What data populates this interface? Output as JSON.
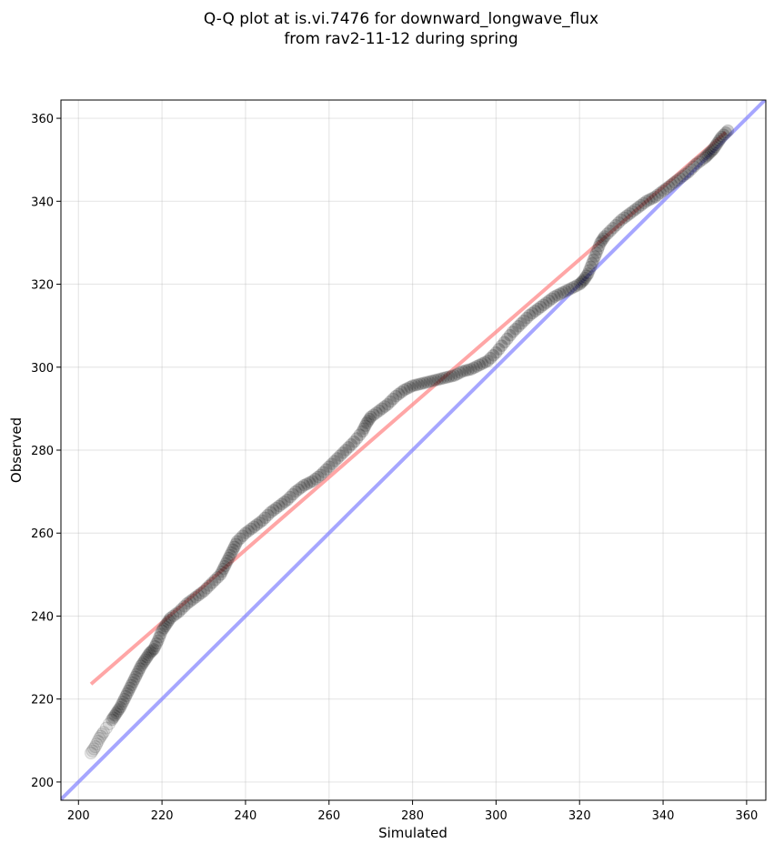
{
  "chart_data": {
    "type": "scatter",
    "title": "Q-Q plot at is.vi.7476 for downward_longwave_flux",
    "subtitle": "from rav2-11-12 during spring",
    "xlabel": "Simulated",
    "ylabel": "Observed",
    "xlim": [
      195.8,
      364.6
    ],
    "ylim": [
      195.6,
      364.4
    ],
    "xticks": [
      200,
      220,
      240,
      260,
      280,
      300,
      320,
      340,
      360
    ],
    "yticks": [
      200,
      220,
      240,
      260,
      280,
      300,
      320,
      340,
      360
    ],
    "grid": true,
    "colors": {
      "points": "#000000",
      "fit_line": "#ff8080",
      "identity_line": "#8080ff"
    },
    "fit_line": {
      "x": [
        203,
        355
      ],
      "y": [
        223.6,
        356.6
      ]
    },
    "identity_line": {
      "x": [
        195.8,
        364.6
      ],
      "y": [
        195.8,
        364.6
      ]
    },
    "points": {
      "x": [
        203,
        204,
        205,
        206,
        208,
        209,
        210,
        211,
        212,
        213,
        214,
        215,
        216,
        217,
        218,
        219,
        220,
        221,
        222,
        224,
        226,
        228,
        230,
        232,
        234,
        235,
        236,
        237,
        238,
        240,
        242,
        244,
        246,
        248,
        250,
        252,
        254,
        256,
        258,
        260,
        262,
        264,
        266,
        268,
        269,
        270,
        272,
        274,
        276,
        278,
        280,
        282,
        284,
        286,
        288,
        290,
        292,
        294,
        296,
        298,
        300,
        302,
        304,
        306,
        308,
        310,
        312,
        314,
        316,
        318,
        320,
        321,
        322,
        323,
        324,
        325,
        326,
        328,
        330,
        332,
        334,
        336,
        338,
        340,
        342,
        344,
        346,
        348,
        350,
        351,
        352,
        353,
        354,
        355.5
      ],
      "y": [
        207,
        208.5,
        210.5,
        212,
        215,
        216.5,
        218,
        220,
        222,
        224,
        226,
        228,
        229.5,
        231,
        232,
        234,
        236.5,
        238,
        239.5,
        241,
        243,
        244.5,
        246,
        248,
        250,
        252,
        254,
        256,
        258,
        260,
        261.5,
        263,
        265,
        266.5,
        268,
        270,
        271.5,
        272.5,
        274,
        276,
        278,
        280,
        282,
        284.5,
        286.5,
        288,
        289.5,
        291,
        293,
        294.5,
        295.5,
        296,
        296.5,
        297,
        297.5,
        298,
        299,
        299.5,
        300.5,
        301.5,
        303.5,
        306,
        308.5,
        310.5,
        312.5,
        314,
        315.5,
        317,
        318,
        319,
        320,
        321,
        322.5,
        325,
        327.5,
        330,
        331.5,
        333.5,
        335.5,
        337,
        338.5,
        340,
        341,
        342.5,
        344,
        345.5,
        347,
        349,
        350.5,
        351.5,
        352.5,
        354,
        355.5,
        357
      ]
    }
  }
}
